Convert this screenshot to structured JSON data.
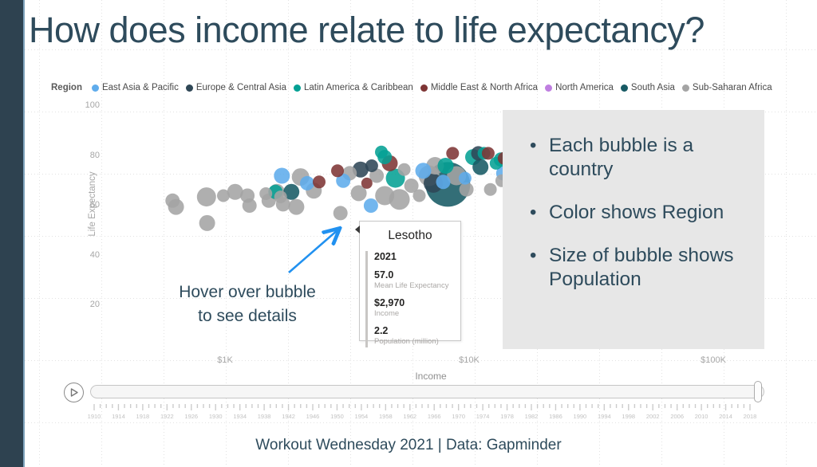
{
  "slide": {
    "title": "How does income relate to life expectancy?",
    "footer": "Workout Wednesday 2021 | Data: Gapminder"
  },
  "legend": {
    "label": "Region",
    "items": [
      {
        "key": "EAP",
        "label": "East Asia & Pacific",
        "color": "#5FACEC"
      },
      {
        "key": "ECA",
        "label": "Europe & Central Asia",
        "color": "#2F4756"
      },
      {
        "key": "LAC",
        "label": "Latin America & Caribbean",
        "color": "#04A094"
      },
      {
        "key": "MENA",
        "label": "Middle East & North Africa",
        "color": "#7E3535"
      },
      {
        "key": "NA",
        "label": "North America",
        "color": "#BF7FE0"
      },
      {
        "key": "SA",
        "label": "South Asia",
        "color": "#175A64"
      },
      {
        "key": "SSA",
        "label": "Sub-Saharan Africa",
        "color": "#A4A4A4"
      }
    ]
  },
  "chart_data": {
    "type": "scatter",
    "xlabel": "Income",
    "ylabel": "Life Expectancy",
    "x_scale": "log",
    "x_tick_labels": [
      "$1K",
      "$10K",
      "$100K"
    ],
    "x_tick_values": [
      1000,
      10000,
      100000
    ],
    "y_tick_values": [
      100,
      80,
      60,
      40,
      20
    ],
    "y_range": [
      10,
      100
    ],
    "legend_position": "top",
    "grid": "dotted",
    "bubble_cols": [
      "region",
      "income_usd",
      "life_expectancy",
      "radius_px"
    ],
    "bubbles": [
      [
        "SSA",
        610,
        62,
        9
      ],
      [
        "SSA",
        630,
        59.5,
        10
      ],
      [
        "SSA",
        840,
        63.5,
        12
      ],
      [
        "SSA",
        845,
        53,
        10
      ],
      [
        "SSA",
        985,
        64,
        8
      ],
      [
        "SSA",
        1100,
        65.5,
        10
      ],
      [
        "SSA",
        1235,
        64,
        9
      ],
      [
        "SSA",
        1260,
        60,
        9
      ],
      [
        "SSA",
        1470,
        64.8,
        8
      ],
      [
        "SSA",
        1510,
        62,
        9
      ],
      [
        "SSA",
        1630,
        65.5,
        10
      ],
      [
        "SSA",
        1690,
        63.5,
        8
      ],
      [
        "SSA",
        1730,
        60.5,
        9
      ],
      [
        "SSA",
        1960,
        59.5,
        10
      ],
      [
        "SSA",
        2040,
        71.5,
        11
      ],
      [
        "SSA",
        2310,
        66,
        10
      ],
      [
        "SSA",
        2970,
        57,
        9
      ],
      [
        "SSA",
        3240,
        73,
        9
      ],
      [
        "SSA",
        3530,
        65,
        10
      ],
      [
        "SSA",
        4180,
        72,
        9
      ],
      [
        "SSA",
        4510,
        64,
        12
      ],
      [
        "SSA",
        5180,
        62.5,
        13
      ],
      [
        "SSA",
        5420,
        74.5,
        8
      ],
      [
        "SSA",
        5800,
        68,
        9
      ],
      [
        "SSA",
        6250,
        64,
        8
      ],
      [
        "SSA",
        6850,
        72,
        13
      ],
      [
        "SSA",
        7250,
        76,
        11
      ],
      [
        "SSA",
        8880,
        72,
        12
      ],
      [
        "SSA",
        9750,
        66.5,
        9
      ],
      [
        "SSA",
        12220,
        66.5,
        8
      ],
      [
        "SSA",
        13600,
        70,
        8
      ],
      [
        "EAP",
        1710,
        72,
        10
      ],
      [
        "EAP",
        2170,
        69,
        9
      ],
      [
        "EAP",
        3050,
        70,
        9
      ],
      [
        "EAP",
        3960,
        60,
        9
      ],
      [
        "EAP",
        6490,
        74,
        10
      ],
      [
        "EAP",
        7830,
        69.5,
        9
      ],
      [
        "EAP",
        9620,
        71,
        8
      ],
      [
        "EAP",
        13800,
        73,
        9
      ],
      [
        "LAC",
        1610,
        65.5,
        9
      ],
      [
        "LAC",
        4370,
        81.5,
        8
      ],
      [
        "LAC",
        4510,
        79.5,
        9
      ],
      [
        "LAC",
        4990,
        71,
        12
      ],
      [
        "LAC",
        8010,
        76,
        10
      ],
      [
        "LAC",
        10380,
        79.5,
        10
      ],
      [
        "LAC",
        11500,
        81,
        8
      ],
      [
        "LAC",
        12900,
        77,
        8
      ],
      [
        "LAC",
        13500,
        78.5,
        9
      ],
      [
        "MENA",
        2430,
        69.5,
        8
      ],
      [
        "MENA",
        2890,
        74,
        8
      ],
      [
        "MENA",
        3810,
        69,
        7
      ],
      [
        "MENA",
        4730,
        77,
        10
      ],
      [
        "MENA",
        8560,
        81,
        8
      ],
      [
        "MENA",
        11970,
        81,
        8
      ],
      [
        "MENA",
        13900,
        79,
        8
      ],
      [
        "ECA",
        3590,
        74.5,
        10
      ],
      [
        "ECA",
        3990,
        76,
        8
      ],
      [
        "ECA",
        7130,
        69,
        12
      ],
      [
        "ECA",
        10900,
        81,
        9
      ],
      [
        "SA",
        1870,
        65.5,
        10
      ],
      [
        "SA",
        8180,
        68.5,
        28
      ],
      [
        "SA",
        11130,
        75.5,
        10
      ]
    ]
  },
  "tooltip": {
    "title": "Lesotho",
    "rows": [
      {
        "value": "2021",
        "label": ""
      },
      {
        "value": "57.0",
        "label": "Mean Life Expectancy"
      },
      {
        "value": "$2,970",
        "label": "Income"
      },
      {
        "value": "2.2",
        "label": "Population (million)"
      }
    ]
  },
  "annotations": {
    "hover_note_line1": "Hover over bubble",
    "hover_note_line2": "to see details",
    "bullets": [
      "Each bubble is a country",
      "Color shows Region",
      "Size of bubble shows Population"
    ],
    "arrow_color": "#2191F0"
  },
  "timeline": {
    "year_labels": [
      1910,
      1914,
      1918,
      1922,
      1926,
      1930,
      1934,
      1938,
      1942,
      1946,
      1950,
      1954,
      1958,
      1962,
      1966,
      1970,
      1974,
      1978,
      1982,
      1986,
      1990,
      1994,
      1998,
      2002,
      2006,
      2010,
      2014,
      2018
    ],
    "year_min": 1910,
    "year_max": 2018
  }
}
